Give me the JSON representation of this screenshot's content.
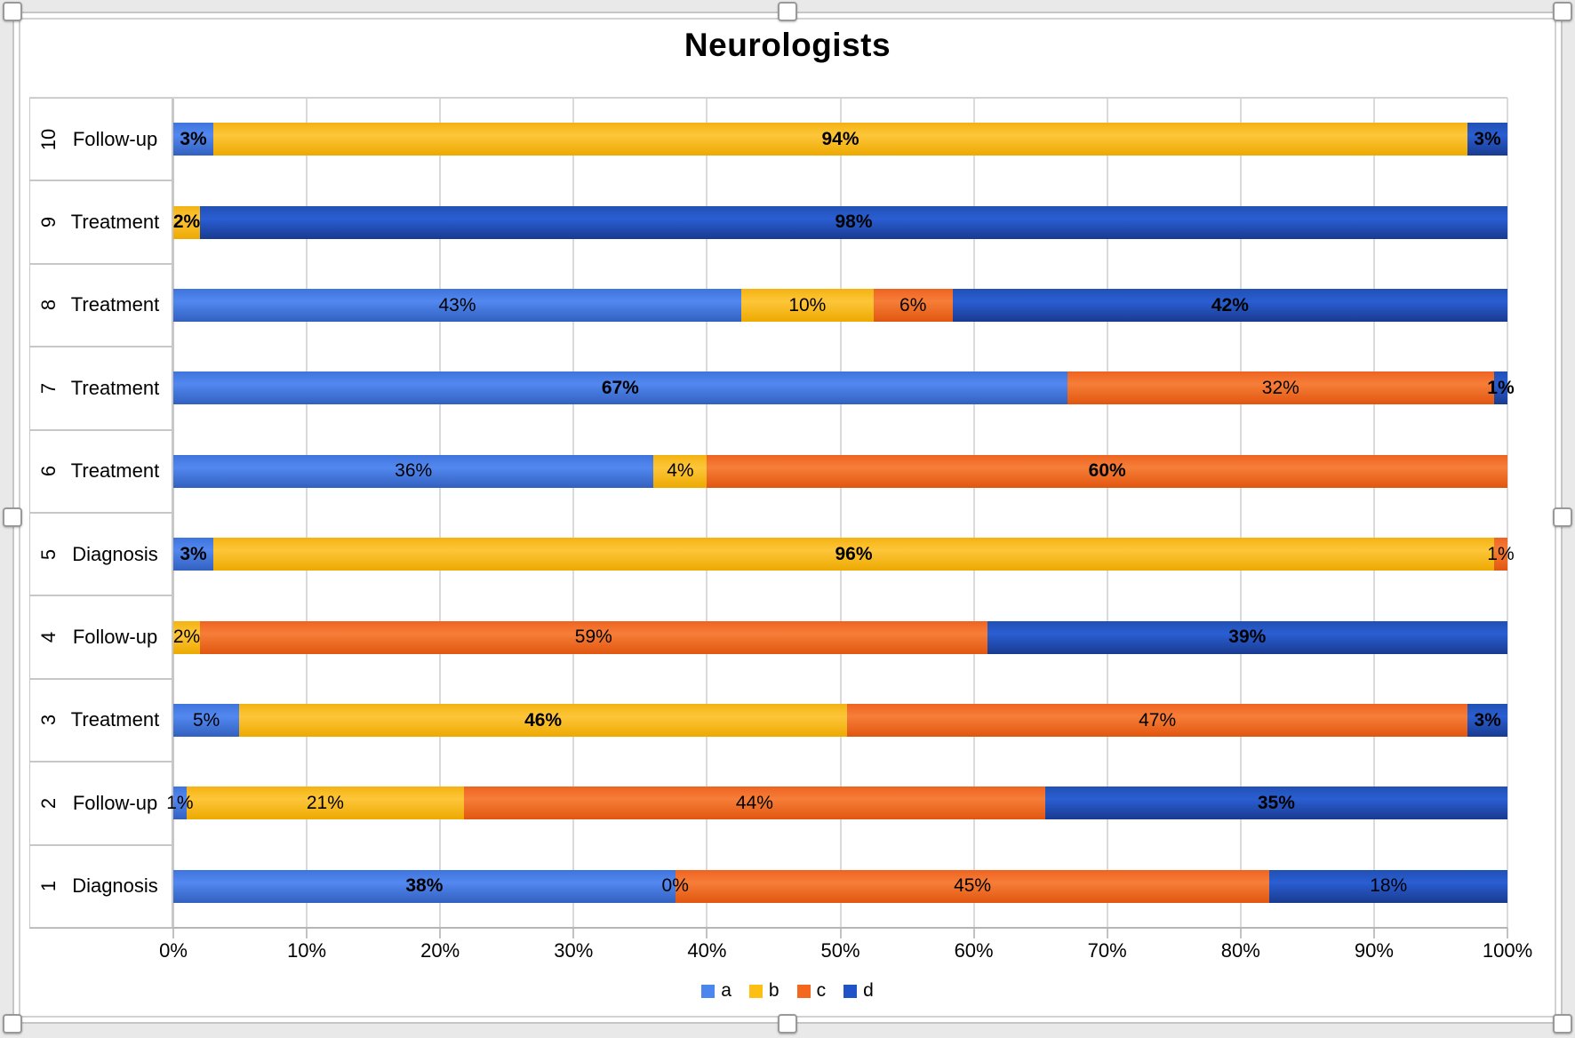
{
  "title": "Neurologists",
  "legend": {
    "items": [
      {
        "key": "a",
        "label": "a"
      },
      {
        "key": "b",
        "label": "b"
      },
      {
        "key": "c",
        "label": "c"
      },
      {
        "key": "d",
        "label": "d"
      }
    ]
  },
  "colors": {
    "a": {
      "legend": "#4b86ee",
      "grad": [
        "#3f74dd",
        "#5288f0",
        "#3260bf"
      ]
    },
    "b": {
      "legend": "#fcbf12",
      "grad": [
        "#f3b211",
        "#fdc63a",
        "#eda900"
      ]
    },
    "c": {
      "legend": "#f4671f",
      "grad": [
        "#ee6322",
        "#f67e38",
        "#e1560f"
      ]
    },
    "d": {
      "legend": "#2053c8",
      "grad": [
        "#2150b5",
        "#2a5ed2",
        "#193b90"
      ]
    }
  },
  "x_axis": {
    "tick_labels": [
      "0%",
      "10%",
      "20%",
      "30%",
      "40%",
      "50%",
      "60%",
      "70%",
      "80%",
      "90%",
      "100%"
    ]
  },
  "rows": [
    {
      "num": "10",
      "label": "Follow-up",
      "segments": [
        {
          "s": "a",
          "v": 3,
          "label": "3%",
          "bold": true
        },
        {
          "s": "b",
          "v": 94,
          "label": "94%",
          "bold": true
        },
        {
          "s": "d",
          "v": 3,
          "label": "3%",
          "bold": true
        }
      ]
    },
    {
      "num": "9",
      "label": "Treatment",
      "segments": [
        {
          "s": "b",
          "v": 2,
          "label": "2%",
          "bold": true
        },
        {
          "s": "d",
          "v": 98,
          "label": "98%",
          "bold": true
        }
      ]
    },
    {
      "num": "8",
      "label": "Treatment",
      "segments": [
        {
          "s": "a",
          "v": 43,
          "label": "43%",
          "bold": false
        },
        {
          "s": "b",
          "v": 10,
          "label": "10%",
          "bold": false
        },
        {
          "s": "c",
          "v": 6,
          "label": "6%",
          "bold": false
        },
        {
          "s": "d",
          "v": 42,
          "label": "42%",
          "bold": true
        }
      ]
    },
    {
      "num": "7",
      "label": "Treatment",
      "segments": [
        {
          "s": "a",
          "v": 67,
          "label": "67%",
          "bold": true
        },
        {
          "s": "c",
          "v": 32,
          "label": "32%",
          "bold": false
        },
        {
          "s": "d",
          "v": 1,
          "label": "1%",
          "bold": true
        }
      ]
    },
    {
      "num": "6",
      "label": "Treatment",
      "segments": [
        {
          "s": "a",
          "v": 36,
          "label": "36%",
          "bold": false
        },
        {
          "s": "b",
          "v": 4,
          "label": "4%",
          "bold": false
        },
        {
          "s": "c",
          "v": 60,
          "label": "60%",
          "bold": true
        }
      ]
    },
    {
      "num": "5",
      "label": "Diagnosis",
      "segments": [
        {
          "s": "a",
          "v": 3,
          "label": "3%",
          "bold": true
        },
        {
          "s": "b",
          "v": 96,
          "label": "96%",
          "bold": true
        },
        {
          "s": "c",
          "v": 1,
          "label": "1%",
          "bold": false
        }
      ]
    },
    {
      "num": "4",
      "label": "Follow-up",
      "segments": [
        {
          "s": "b",
          "v": 2,
          "label": "2%",
          "bold": false
        },
        {
          "s": "c",
          "v": 59,
          "label": "59%",
          "bold": false
        },
        {
          "s": "d",
          "v": 39,
          "label": "39%",
          "bold": true
        }
      ]
    },
    {
      "num": "3",
      "label": "Treatment",
      "segments": [
        {
          "s": "a",
          "v": 5,
          "label": "5%",
          "bold": false
        },
        {
          "s": "b",
          "v": 46,
          "label": "46%",
          "bold": true
        },
        {
          "s": "c",
          "v": 47,
          "label": "47%",
          "bold": false
        },
        {
          "s": "d",
          "v": 3,
          "label": "3%",
          "bold": true
        }
      ]
    },
    {
      "num": "2",
      "label": "Follow-up",
      "segments": [
        {
          "s": "a",
          "v": 1,
          "label": "1%",
          "bold": false
        },
        {
          "s": "b",
          "v": 21,
          "label": "21%",
          "bold": false
        },
        {
          "s": "c",
          "v": 44,
          "label": "44%",
          "bold": false
        },
        {
          "s": "d",
          "v": 35,
          "label": "35%",
          "bold": true
        }
      ]
    },
    {
      "num": "1",
      "label": "Diagnosis",
      "segments": [
        {
          "s": "a",
          "v": 38,
          "label": "38%",
          "bold": true
        },
        {
          "s": "b",
          "v": 0,
          "label": "0%",
          "bold": false
        },
        {
          "s": "c",
          "v": 45,
          "label": "45%",
          "bold": false
        },
        {
          "s": "d",
          "v": 18,
          "label": "18%",
          "bold": false
        }
      ]
    }
  ],
  "chart_data": {
    "type": "bar",
    "orientation": "horizontal",
    "stacked": true,
    "title": "Neurologists",
    "categories": [
      "10 Follow-up",
      "9 Treatment",
      "8 Treatment",
      "7 Treatment",
      "6 Treatment",
      "5 Diagnosis",
      "4 Follow-up",
      "3 Treatment",
      "2 Follow-up",
      "1 Diagnosis"
    ],
    "series": [
      {
        "name": "a",
        "values": [
          3,
          0,
          43,
          67,
          36,
          3,
          0,
          5,
          1,
          38
        ]
      },
      {
        "name": "b",
        "values": [
          94,
          2,
          10,
          0,
          4,
          96,
          2,
          46,
          21,
          0
        ]
      },
      {
        "name": "c",
        "values": [
          0,
          0,
          6,
          32,
          60,
          1,
          59,
          47,
          44,
          45
        ]
      },
      {
        "name": "d",
        "values": [
          3,
          98,
          42,
          1,
          0,
          0,
          39,
          3,
          35,
          18
        ]
      }
    ],
    "xlim": [
      0,
      100
    ],
    "x_tick_labels": [
      "0%",
      "10%",
      "20%",
      "30%",
      "40%",
      "50%",
      "60%",
      "70%",
      "80%",
      "90%",
      "100%"
    ],
    "legend_position": "bottom",
    "grid": true
  }
}
